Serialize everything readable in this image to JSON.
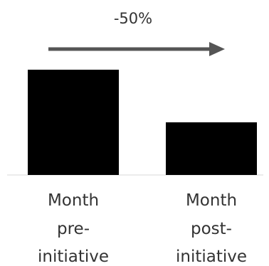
{
  "chart_data": {
    "type": "bar",
    "categories": [
      [
        "Month",
        "pre-",
        "initiative"
      ],
      [
        "Month",
        "post-",
        "initiative"
      ]
    ],
    "values": [
      100,
      50
    ],
    "ylim": [
      0,
      100
    ],
    "annotation": {
      "text": "-50%",
      "type": "arrow-right"
    },
    "title": "",
    "xlabel": "",
    "ylabel": "",
    "grid": false,
    "colors": {
      "bars": "#000000",
      "arrow": "#555555",
      "baseline": "#d9d9d9",
      "text": "#333333"
    }
  }
}
